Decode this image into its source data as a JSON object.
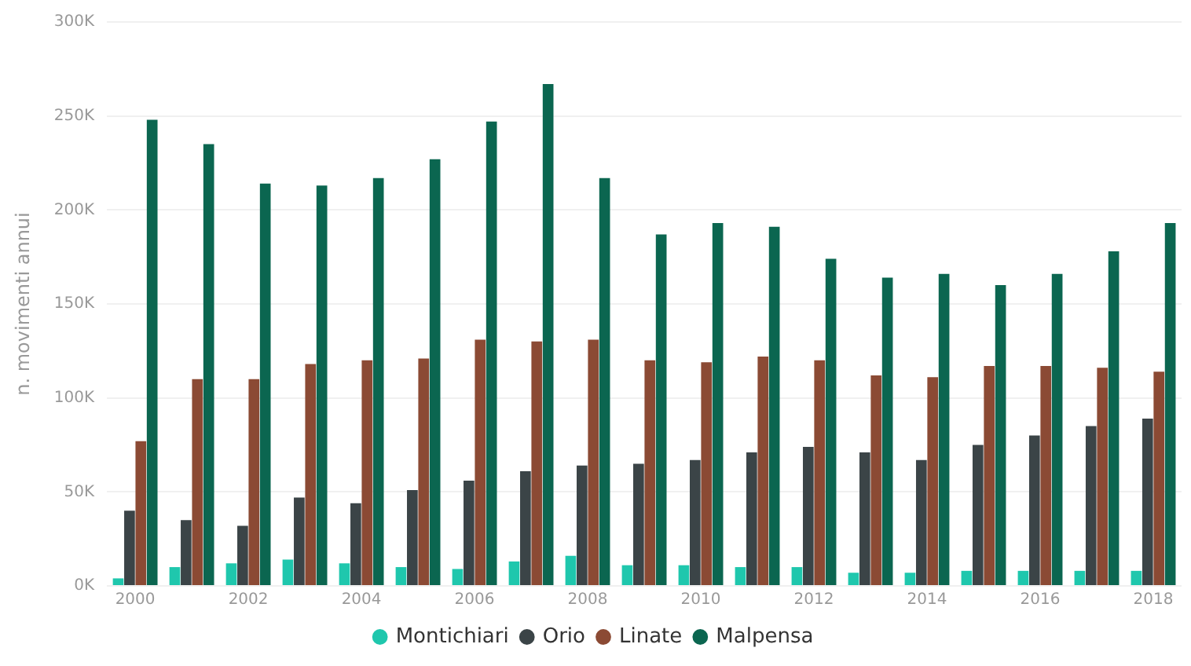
{
  "chart_data": {
    "type": "bar",
    "ylabel": "n. movimenti annui",
    "categories": [
      "2000",
      null,
      "2002",
      null,
      "2004",
      null,
      "2006",
      null,
      "2008",
      null,
      "2010",
      null,
      "2012",
      null,
      "2014",
      null,
      "2016",
      null,
      "2018"
    ],
    "series": [
      {
        "name": "Montichiari",
        "color": "#1fc7ad",
        "values": [
          4000,
          10000,
          12000,
          14000,
          12000,
          10000,
          9000,
          13000,
          16000,
          11000,
          11000,
          10000,
          10000,
          7000,
          7000,
          8000,
          8000,
          8000,
          8000
        ]
      },
      {
        "name": "Orio",
        "color": "#3b4447",
        "values": [
          40000,
          35000,
          32000,
          47000,
          44000,
          51000,
          56000,
          61000,
          64000,
          65000,
          67000,
          71000,
          74000,
          71000,
          67000,
          75000,
          80000,
          85000,
          89000
        ]
      },
      {
        "name": "Linate",
        "color": "#8b4a34",
        "values": [
          77000,
          110000,
          110000,
          118000,
          120000,
          121000,
          131000,
          130000,
          131000,
          120000,
          119000,
          122000,
          120000,
          112000,
          111000,
          117000,
          117000,
          116000,
          114000
        ]
      },
      {
        "name": "Malpensa",
        "color": "#0b6650",
        "values": [
          248000,
          235000,
          214000,
          213000,
          217000,
          227000,
          247000,
          267000,
          217000,
          187000,
          193000,
          191000,
          174000,
          164000,
          166000,
          160000,
          166000,
          178000,
          193000
        ]
      }
    ],
    "ylim": [
      0,
      300000
    ],
    "yticks": [
      {
        "value": 0,
        "label": "0K"
      },
      {
        "value": 50000,
        "label": "50K"
      },
      {
        "value": 100000,
        "label": "100K"
      },
      {
        "value": 150000,
        "label": "150K"
      },
      {
        "value": 200000,
        "label": "200K"
      },
      {
        "value": 250000,
        "label": "250K"
      },
      {
        "value": 300000,
        "label": "300K"
      }
    ],
    "grid": "y",
    "legend": "bottom"
  }
}
